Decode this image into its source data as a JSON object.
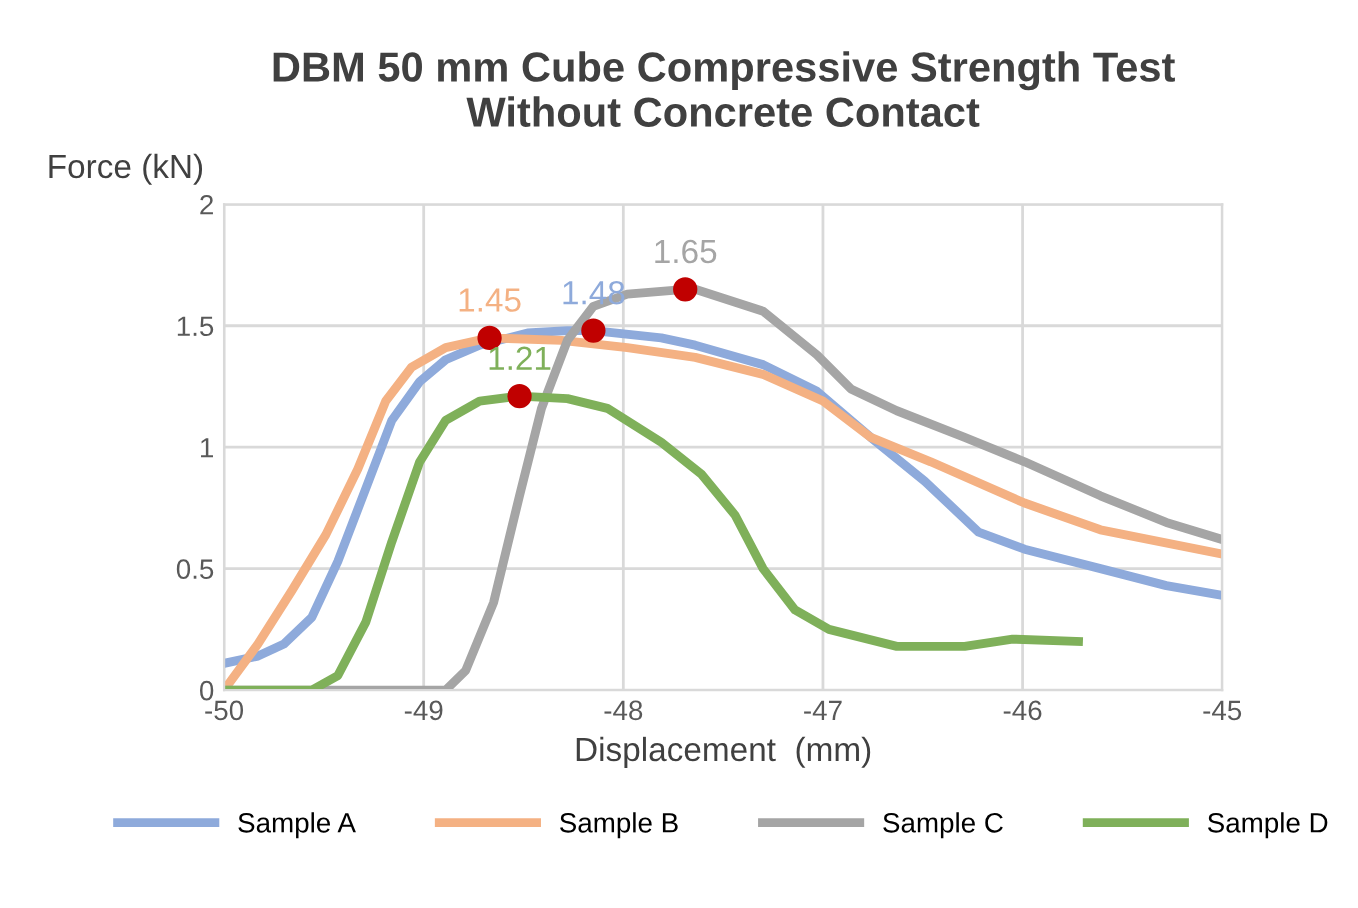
{
  "chart_data": {
    "type": "line",
    "title": "DBM 50 mm Cube Compressive Strength Test\nWithout Concrete Contact",
    "xlabel": "Displacement  (mm)",
    "ylabel": "Force (kN)",
    "xlim": [
      -50,
      -45
    ],
    "xticks": [
      -50,
      -49,
      -48,
      -47,
      -46,
      -45
    ],
    "ylim": [
      0,
      2
    ],
    "yticks": [
      0,
      0.5,
      1,
      1.5,
      2
    ],
    "grid": true,
    "legend": "bottom",
    "marker": "none",
    "line_style": "solid",
    "series": [
      {
        "name": "Sample A",
        "color": "#8eaadb",
        "x": [
          -50,
          -49.83,
          -49.7,
          -49.56,
          -49.43,
          -49.29,
          -49.16,
          -49.02,
          -48.89,
          -48.72,
          -48.48,
          -48.28,
          -48.15,
          -47.81,
          -47.64,
          -47.3,
          -47.03,
          -46.76,
          -46.49,
          -46.22,
          -45.99,
          -45.61,
          -45.28,
          -45.0
        ],
        "values": [
          0.11,
          0.14,
          0.19,
          0.3,
          0.53,
          0.83,
          1.11,
          1.27,
          1.36,
          1.42,
          1.47,
          1.48,
          1.48,
          1.45,
          1.42,
          1.34,
          1.23,
          1.04,
          0.86,
          0.65,
          0.58,
          0.5,
          0.43,
          0.39
        ]
      },
      {
        "name": "Sample B",
        "color": "#f4b183",
        "x": [
          -50,
          -49.83,
          -49.66,
          -49.49,
          -49.33,
          -49.19,
          -49.06,
          -48.89,
          -48.67,
          -48.31,
          -47.98,
          -47.64,
          -47.3,
          -47.0,
          -46.76,
          -46.46,
          -45.99,
          -45.61,
          -45.0
        ],
        "values": [
          0,
          0.19,
          0.41,
          0.64,
          0.91,
          1.19,
          1.33,
          1.41,
          1.45,
          1.44,
          1.41,
          1.37,
          1.3,
          1.19,
          1.04,
          0.94,
          0.77,
          0.66,
          0.56
        ]
      },
      {
        "name": "Sample C",
        "color": "#a5a5a5",
        "x": [
          -50,
          -48.89,
          -48.79,
          -48.65,
          -48.52,
          -48.41,
          -48.28,
          -48.15,
          -47.98,
          -47.69,
          -47.64,
          -47.3,
          -47.03,
          -46.86,
          -46.63,
          -46.29,
          -45.99,
          -45.61,
          -45.28,
          -45.0
        ],
        "values": [
          0,
          0,
          0.08,
          0.36,
          0.8,
          1.16,
          1.44,
          1.58,
          1.63,
          1.65,
          1.65,
          1.56,
          1.38,
          1.24,
          1.15,
          1.04,
          0.94,
          0.8,
          0.69,
          0.62
        ]
      },
      {
        "name": "Sample D",
        "color": "#7fb05a",
        "x": [
          -50,
          -49.56,
          -49.43,
          -49.29,
          -49.16,
          -49.02,
          -48.89,
          -48.72,
          -48.52,
          -48.28,
          -48.08,
          -47.81,
          -47.61,
          -47.44,
          -47.3,
          -47.14,
          -46.97,
          -46.63,
          -46.29,
          -46.05,
          -45.72
        ],
        "values": [
          0,
          0,
          0.06,
          0.28,
          0.61,
          0.94,
          1.11,
          1.19,
          1.21,
          1.2,
          1.16,
          1.02,
          0.89,
          0.72,
          0.5,
          0.33,
          0.25,
          0.18,
          0.18,
          0.21,
          0.2
        ]
      },
      {
        "type": "scatter",
        "color": "#c00000",
        "marker": "circle",
        "x": [
          -48.15,
          -48.67,
          -47.69,
          -48.52
        ],
        "values": [
          1.48,
          1.45,
          1.65,
          1.21
        ],
        "value_labels": [
          "1.48",
          "1.45",
          "1.65",
          "1.21"
        ]
      }
    ]
  }
}
